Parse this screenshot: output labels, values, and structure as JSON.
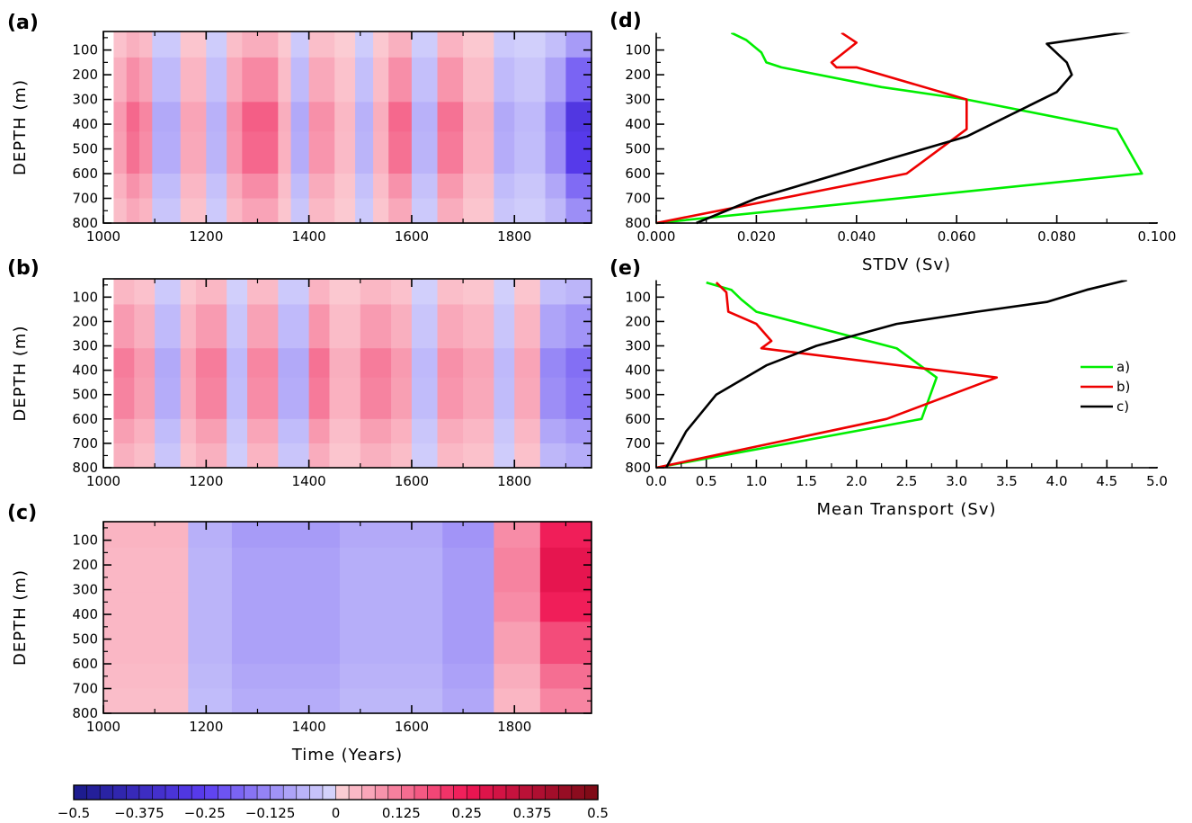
{
  "chart_data": [
    {
      "type": "heatmap",
      "panel_label": "(a)",
      "ylabel": "DEPTH (m)",
      "xlabel": "",
      "xlim": [
        1000,
        1950
      ],
      "x_ticks": [
        1000,
        1200,
        1400,
        1600,
        1800
      ],
      "ylim": [
        800,
        25
      ],
      "y_ticks": [
        100,
        200,
        300,
        400,
        500,
        600,
        700,
        800
      ],
      "x_start": 1020,
      "x_gap_after": 1950,
      "segments": [
        {
          "x0": 1020,
          "x1": 1045,
          "v": 0.06
        },
        {
          "x0": 1045,
          "x1": 1070,
          "v": 0.11
        },
        {
          "x0": 1070,
          "x1": 1095,
          "v": 0.08
        },
        {
          "x0": 1095,
          "x1": 1150,
          "v": -0.06
        },
        {
          "x0": 1150,
          "x1": 1200,
          "v": 0.05
        },
        {
          "x0": 1200,
          "x1": 1240,
          "v": -0.05
        },
        {
          "x0": 1240,
          "x1": 1270,
          "v": 0.07
        },
        {
          "x0": 1270,
          "x1": 1340,
          "v": 0.12
        },
        {
          "x0": 1340,
          "x1": 1365,
          "v": 0.04
        },
        {
          "x0": 1365,
          "x1": 1400,
          "v": -0.06
        },
        {
          "x0": 1400,
          "x1": 1450,
          "v": 0.07
        },
        {
          "x0": 1450,
          "x1": 1490,
          "v": 0.03
        },
        {
          "x0": 1490,
          "x1": 1525,
          "v": -0.05
        },
        {
          "x0": 1525,
          "x1": 1555,
          "v": 0.04
        },
        {
          "x0": 1555,
          "x1": 1600,
          "v": 0.11
        },
        {
          "x0": 1600,
          "x1": 1650,
          "v": -0.05
        },
        {
          "x0": 1650,
          "x1": 1700,
          "v": 0.1
        },
        {
          "x0": 1700,
          "x1": 1760,
          "v": 0.04
        },
        {
          "x0": 1760,
          "x1": 1800,
          "v": -0.06
        },
        {
          "x0": 1800,
          "x1": 1860,
          "v": -0.04
        },
        {
          "x0": 1860,
          "x1": 1900,
          "v": -0.1
        },
        {
          "x0": 1900,
          "x1": 1950,
          "v": -0.22
        }
      ]
    },
    {
      "type": "heatmap",
      "panel_label": "(b)",
      "ylabel": "DEPTH (m)",
      "xlabel": "",
      "xlim": [
        1000,
        1950
      ],
      "x_ticks": [
        1000,
        1200,
        1400,
        1600,
        1800
      ],
      "ylim": [
        800,
        25
      ],
      "y_ticks": [
        100,
        200,
        300,
        400,
        500,
        600,
        700,
        800
      ],
      "x_start": 1020,
      "segments": [
        {
          "x0": 1020,
          "x1": 1060,
          "v": 0.09
        },
        {
          "x0": 1060,
          "x1": 1100,
          "v": 0.06
        },
        {
          "x0": 1100,
          "x1": 1150,
          "v": -0.06
        },
        {
          "x0": 1150,
          "x1": 1180,
          "v": 0.05
        },
        {
          "x0": 1180,
          "x1": 1240,
          "v": 0.09
        },
        {
          "x0": 1240,
          "x1": 1280,
          "v": -0.04
        },
        {
          "x0": 1280,
          "x1": 1340,
          "v": 0.08
        },
        {
          "x0": 1340,
          "x1": 1400,
          "v": -0.06
        },
        {
          "x0": 1400,
          "x1": 1440,
          "v": 0.1
        },
        {
          "x0": 1440,
          "x1": 1500,
          "v": 0.04
        },
        {
          "x0": 1500,
          "x1": 1560,
          "v": 0.09
        },
        {
          "x0": 1560,
          "x1": 1600,
          "v": 0.06
        },
        {
          "x0": 1600,
          "x1": 1650,
          "v": -0.04
        },
        {
          "x0": 1650,
          "x1": 1700,
          "v": 0.07
        },
        {
          "x0": 1700,
          "x1": 1760,
          "v": 0.05
        },
        {
          "x0": 1760,
          "x1": 1800,
          "v": -0.04
        },
        {
          "x0": 1800,
          "x1": 1850,
          "v": 0.05
        },
        {
          "x0": 1850,
          "x1": 1900,
          "v": -0.1
        },
        {
          "x0": 1900,
          "x1": 1950,
          "v": -0.13
        }
      ]
    },
    {
      "type": "heatmap",
      "panel_label": "(c)",
      "ylabel": "DEPTH (m)",
      "xlabel": "Time (Years)",
      "xlim": [
        1000,
        1950
      ],
      "x_ticks": [
        1000,
        1200,
        1400,
        1600,
        1800
      ],
      "ylim": [
        800,
        25
      ],
      "y_ticks": [
        100,
        200,
        300,
        400,
        500,
        600,
        700,
        800
      ],
      "segments": [
        {
          "x0": 1000,
          "x1": 1165,
          "v": 0.04
        },
        {
          "x0": 1165,
          "x1": 1250,
          "v": -0.06
        },
        {
          "x0": 1250,
          "x1": 1460,
          "v": -0.09
        },
        {
          "x0": 1460,
          "x1": 1660,
          "v": -0.07
        },
        {
          "x0": 1660,
          "x1": 1760,
          "v": -0.1
        },
        {
          "x0": 1760,
          "x1": 1850,
          "v": 0.06
        },
        {
          "x0": 1850,
          "x1": 1950,
          "v": 0.15
        }
      ]
    },
    {
      "type": "line",
      "panel_label": "(d)",
      "xlabel": "STDV (Sv)",
      "ylabel": "",
      "xlim": [
        0,
        0.1
      ],
      "x_ticks": [
        "0.000",
        "0.020",
        "0.040",
        "0.060",
        "0.080",
        "0.100"
      ],
      "ylim": [
        800,
        25
      ],
      "y_ticks": [
        100,
        200,
        300,
        400,
        500,
        600,
        700,
        800
      ],
      "series": [
        {
          "name": "a)",
          "color": "#00ee00",
          "x": [
            0.015,
            0.018,
            0.021,
            0.022,
            0.025,
            0.045,
            0.062,
            0.092,
            0.097,
            0.0
          ],
          "y": [
            30,
            60,
            110,
            150,
            170,
            250,
            300,
            420,
            600,
            800
          ]
        },
        {
          "name": "b)",
          "color": "#ee0000",
          "x": [
            0.037,
            0.04,
            0.035,
            0.036,
            0.04,
            0.062,
            0.062,
            0.05,
            0.0
          ],
          "y": [
            30,
            70,
            150,
            170,
            170,
            300,
            420,
            600,
            800
          ]
        },
        {
          "name": "c)",
          "color": "#000000",
          "x": [
            0.095,
            0.078,
            0.082,
            0.083,
            0.08,
            0.072,
            0.062,
            0.045,
            0.02,
            0.008
          ],
          "y": [
            25,
            75,
            150,
            200,
            270,
            350,
            450,
            550,
            700,
            800
          ]
        }
      ]
    },
    {
      "type": "line",
      "panel_label": "(e)",
      "xlabel": "Mean Transport (Sv)",
      "ylabel": "",
      "xlim": [
        0,
        5
      ],
      "x_ticks": [
        "0.0",
        "0.5",
        "1.0",
        "1.5",
        "2.0",
        "2.5",
        "3.0",
        "3.5",
        "4.0",
        "4.5",
        "5.0"
      ],
      "ylim": [
        800,
        25
      ],
      "y_ticks": [
        100,
        200,
        300,
        400,
        500,
        600,
        700,
        800
      ],
      "legend": {
        "placement": "right",
        "entries": [
          "a)",
          "b)",
          "c)"
        ]
      },
      "series": [
        {
          "name": "a)",
          "color": "#00ee00",
          "x": [
            0.5,
            0.75,
            0.85,
            1.0,
            2.4,
            2.8,
            2.65,
            0.0
          ],
          "y": [
            40,
            70,
            110,
            160,
            310,
            430,
            600,
            800
          ]
        },
        {
          "name": "b)",
          "color": "#ee0000",
          "x": [
            0.6,
            0.7,
            0.72,
            1.0,
            1.15,
            1.05,
            3.4,
            2.3,
            0.0
          ],
          "y": [
            40,
            80,
            160,
            210,
            280,
            310,
            430,
            600,
            800
          ]
        },
        {
          "name": "c)",
          "color": "#000000",
          "x": [
            4.7,
            4.3,
            3.9,
            3.2,
            2.4,
            1.6,
            1.1,
            0.6,
            0.3,
            0.1
          ],
          "y": [
            30,
            70,
            120,
            160,
            210,
            300,
            380,
            500,
            650,
            800
          ]
        }
      ]
    }
  ],
  "colorbar": {
    "range": [
      -0.5,
      0.5
    ],
    "n_levels": 40,
    "tick_labels": [
      "−0.5",
      "−0.375",
      "−0.25",
      "−0.125",
      "0",
      "0.125",
      "0.25",
      "0.375",
      "0.5"
    ],
    "neg_color": "#1a1a8a",
    "mid_neg_color": "#5a3cf0",
    "mid_pos_color": "#ef1654",
    "pos_color": "#7a0a14"
  }
}
